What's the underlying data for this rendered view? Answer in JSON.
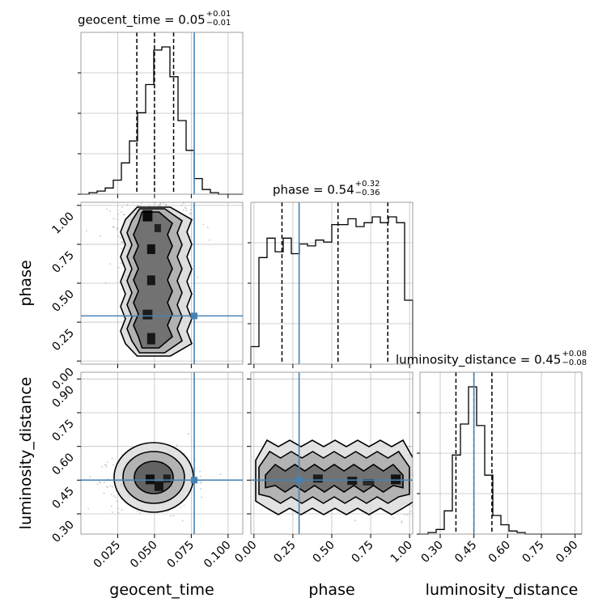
{
  "colors": {
    "truth": "#4682b4",
    "histogram": "#000000",
    "grid": "#c0c0c0",
    "scatter": "#808080"
  },
  "titles": [
    {
      "name": "geocent_time",
      "value": "0.05",
      "plus": "+0.01",
      "minus": "−0.01"
    },
    {
      "name": "phase",
      "value": "0.54",
      "plus": "+0.32",
      "minus": "−0.36"
    },
    {
      "name": "luminosity_distance",
      "value": "0.45",
      "plus": "+0.08",
      "minus": "−0.08"
    }
  ],
  "chart_data": {
    "type": "corner",
    "parameters": [
      "geocent_time",
      "phase",
      "luminosity_distance"
    ],
    "axis_labels": [
      "geocent_time",
      "phase",
      "luminosity_distance"
    ],
    "ranges": {
      "geocent_time": [
        0.0,
        0.11
      ],
      "phase": [
        -0.02,
        1.02
      ],
      "luminosity_distance": [
        0.21,
        0.93
      ]
    },
    "ticks": {
      "geocent_time": [
        "0.025",
        "0.050",
        "0.075",
        "0.100"
      ],
      "phase": [
        "0.00",
        "0.25",
        "0.50",
        "0.75",
        "1.00"
      ],
      "luminosity_distance": [
        "0.30",
        "0.45",
        "0.60",
        "0.75",
        "0.90"
      ]
    },
    "tick_values": {
      "geocent_time": [
        0.025,
        0.05,
        0.075,
        0.1
      ],
      "phase": [
        0.0,
        0.25,
        0.5,
        0.75,
        1.0
      ],
      "luminosity_distance": [
        0.3,
        0.45,
        0.6,
        0.75,
        0.9
      ]
    },
    "truths": {
      "geocent_time": 0.077,
      "phase": 0.29,
      "luminosity_distance": 0.45
    },
    "quantiles": {
      "geocent_time": [
        0.038,
        0.05,
        0.063
      ],
      "phase": [
        0.18,
        0.54,
        0.86
      ],
      "luminosity_distance": [
        0.37,
        0.45,
        0.53
      ]
    },
    "histograms": {
      "geocent_time": {
        "edges": [
          0.0,
          0.0055,
          0.011,
          0.0165,
          0.022,
          0.0275,
          0.033,
          0.0385,
          0.044,
          0.0495,
          0.055,
          0.0605,
          0.066,
          0.0715,
          0.077,
          0.0825,
          0.088,
          0.0935,
          0.099,
          0.1045,
          0.11
        ],
        "counts": [
          0,
          1,
          2,
          4,
          9,
          20,
          34,
          52,
          70,
          92,
          94,
          75,
          47,
          28,
          10,
          3,
          1,
          0,
          0,
          0
        ]
      },
      "phase": {
        "edges": [
          -0.02,
          0.032,
          0.084,
          0.136,
          0.188,
          0.24,
          0.292,
          0.344,
          0.396,
          0.448,
          0.5,
          0.552,
          0.604,
          0.656,
          0.708,
          0.76,
          0.812,
          0.864,
          0.916,
          0.968,
          1.02
        ],
        "counts": [
          9,
          55,
          65,
          58,
          65,
          57,
          62,
          61,
          64,
          63,
          72,
          72,
          75,
          71,
          73,
          76,
          73,
          76,
          73,
          33
        ]
      },
      "luminosity_distance": {
        "edges": [
          0.21,
          0.246,
          0.282,
          0.318,
          0.354,
          0.39,
          0.426,
          0.462,
          0.498,
          0.534,
          0.57,
          0.606,
          0.642,
          0.678,
          0.714,
          0.75,
          0.786,
          0.822,
          0.858,
          0.894,
          0.93
        ],
        "counts": [
          0,
          1,
          3,
          15,
          51,
          71,
          95,
          70,
          38,
          12,
          6,
          2,
          1,
          0,
          0,
          0,
          0,
          0,
          0,
          0
        ]
      }
    },
    "grid": true
  }
}
